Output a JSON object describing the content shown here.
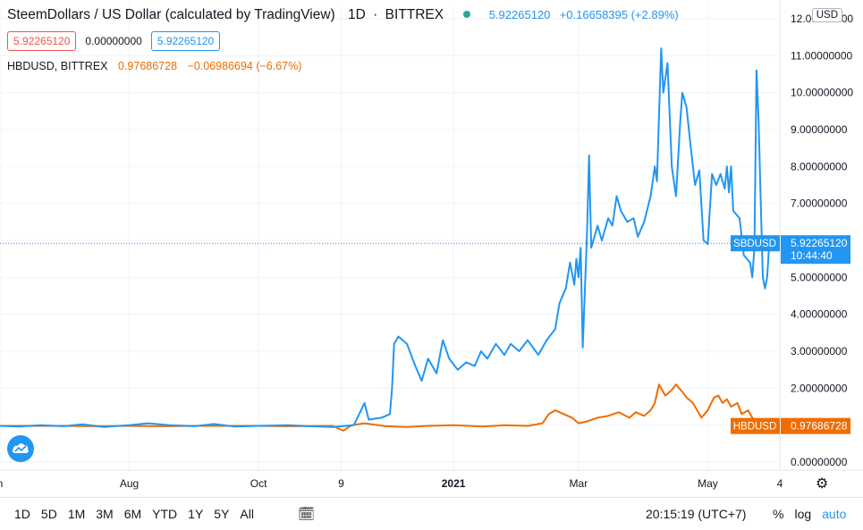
{
  "header": {
    "title": "SteemDollars / US Dollar (calculated by TradingView)",
    "interval": "1D",
    "exchange": "BITTREX",
    "quote_value": "5.92265120",
    "quote_change": "+0.16658395 (+2.89%)"
  },
  "ohlc": {
    "left": "5.92265120",
    "mid": "0.00000000",
    "right": "5.92265120"
  },
  "compare_legend": {
    "name": "HBDUSD, BITTREX",
    "value": "0.97686728",
    "change": "−0.06986694 (−6.67%)"
  },
  "currency": "USD",
  "colors": {
    "primary": "#2196f3",
    "compare": "#ef6c00",
    "up": "#26a69a",
    "down": "#ef5350"
  },
  "chart_data": {
    "type": "line",
    "x_tick_labels": [
      "n",
      "Aug",
      "Oct",
      "9",
      "2021",
      "Mar",
      "May",
      "4"
    ],
    "y_tick_labels": [
      "12.00000000",
      "11.00000000",
      "10.00000000",
      "9.00000000",
      "8.00000000",
      "7.00000000",
      "6.00000000",
      "5.00000000",
      "4.00000000",
      "3.00000000",
      "2.00000000",
      "1.00000000",
      "0.00000000"
    ],
    "ylim": [
      0,
      12
    ],
    "series": [
      {
        "name": "SBDUSD",
        "color": "#2196f3",
        "label": "SBDUSD",
        "last_value": "5.92265120",
        "countdown": "10:44:40",
        "points": [
          [
            "2020-06-01",
            0.98
          ],
          [
            "2020-06-10",
            0.96
          ],
          [
            "2020-06-20",
            1.0
          ],
          [
            "2020-07-01",
            0.97
          ],
          [
            "2020-07-10",
            1.02
          ],
          [
            "2020-07-20",
            0.95
          ],
          [
            "2020-08-01",
            1.0
          ],
          [
            "2020-08-10",
            1.05
          ],
          [
            "2020-08-20",
            1.0
          ],
          [
            "2020-09-01",
            0.97
          ],
          [
            "2020-09-10",
            1.03
          ],
          [
            "2020-09-20",
            0.96
          ],
          [
            "2020-10-01",
            0.98
          ],
          [
            "2020-10-15",
            1.0
          ],
          [
            "2020-10-25",
            0.97
          ],
          [
            "2020-11-05",
            0.95
          ],
          [
            "2020-11-15",
            1.0
          ],
          [
            "2020-11-20",
            1.6
          ],
          [
            "2020-11-22",
            1.15
          ],
          [
            "2020-11-28",
            1.2
          ],
          [
            "2020-12-02",
            1.3
          ],
          [
            "2020-12-03",
            2.0
          ],
          [
            "2020-12-04",
            3.2
          ],
          [
            "2020-12-06",
            3.4
          ],
          [
            "2020-12-10",
            3.2
          ],
          [
            "2020-12-14",
            2.6
          ],
          [
            "2020-12-17",
            2.2
          ],
          [
            "2020-12-20",
            2.8
          ],
          [
            "2020-12-24",
            2.4
          ],
          [
            "2020-12-27",
            3.3
          ],
          [
            "2020-12-30",
            2.8
          ],
          [
            "2021-01-03",
            2.5
          ],
          [
            "2021-01-07",
            2.7
          ],
          [
            "2021-01-11",
            2.6
          ],
          [
            "2021-01-14",
            3.0
          ],
          [
            "2021-01-17",
            2.8
          ],
          [
            "2021-01-21",
            3.2
          ],
          [
            "2021-01-25",
            2.9
          ],
          [
            "2021-01-28",
            3.2
          ],
          [
            "2021-02-01",
            3.0
          ],
          [
            "2021-02-05",
            3.3
          ],
          [
            "2021-02-10",
            2.9
          ],
          [
            "2021-02-14",
            3.3
          ],
          [
            "2021-02-18",
            3.6
          ],
          [
            "2021-02-20",
            4.3
          ],
          [
            "2021-02-23",
            4.7
          ],
          [
            "2021-02-25",
            5.4
          ],
          [
            "2021-02-27",
            4.8
          ],
          [
            "2021-02-28",
            5.5
          ],
          [
            "2021-03-01",
            5.0
          ],
          [
            "2021-03-02",
            5.8
          ],
          [
            "2021-03-03",
            3.1
          ],
          [
            "2021-03-05",
            6.2
          ],
          [
            "2021-03-06",
            8.3
          ],
          [
            "2021-03-07",
            5.8
          ],
          [
            "2021-03-10",
            6.4
          ],
          [
            "2021-03-12",
            6.0
          ],
          [
            "2021-03-15",
            6.6
          ],
          [
            "2021-03-17",
            6.4
          ],
          [
            "2021-03-19",
            7.2
          ],
          [
            "2021-03-21",
            6.8
          ],
          [
            "2021-03-24",
            6.5
          ],
          [
            "2021-03-27",
            6.6
          ],
          [
            "2021-03-29",
            6.1
          ],
          [
            "2021-04-01",
            6.5
          ],
          [
            "2021-04-04",
            7.2
          ],
          [
            "2021-04-06",
            8.0
          ],
          [
            "2021-04-07",
            7.6
          ],
          [
            "2021-04-09",
            11.2
          ],
          [
            "2021-04-10",
            10.0
          ],
          [
            "2021-04-12",
            10.8
          ],
          [
            "2021-04-14",
            8.0
          ],
          [
            "2021-04-16",
            7.2
          ],
          [
            "2021-04-18",
            9.2
          ],
          [
            "2021-04-19",
            10.0
          ],
          [
            "2021-04-21",
            9.6
          ],
          [
            "2021-04-23",
            8.5
          ],
          [
            "2021-04-25",
            7.5
          ],
          [
            "2021-04-27",
            7.9
          ],
          [
            "2021-04-29",
            6.0
          ],
          [
            "2021-05-01",
            5.9
          ],
          [
            "2021-05-03",
            7.8
          ],
          [
            "2021-05-05",
            7.5
          ],
          [
            "2021-05-07",
            7.8
          ],
          [
            "2021-05-09",
            7.4
          ],
          [
            "2021-05-10",
            8.0
          ],
          [
            "2021-05-11",
            7.3
          ],
          [
            "2021-05-12",
            8.0
          ],
          [
            "2021-05-13",
            6.8
          ],
          [
            "2021-05-16",
            6.6
          ],
          [
            "2021-05-18",
            5.6
          ],
          [
            "2021-05-21",
            5.4
          ],
          [
            "2021-05-22",
            5.0
          ],
          [
            "2021-05-23",
            5.8
          ],
          [
            "2021-05-24",
            10.6
          ],
          [
            "2021-05-25",
            9.2
          ],
          [
            "2021-05-26",
            7.0
          ],
          [
            "2021-05-27",
            5.0
          ],
          [
            "2021-05-28",
            4.7
          ],
          [
            "2021-05-29",
            5.0
          ],
          [
            "2021-05-30",
            5.92
          ]
        ]
      },
      {
        "name": "HBDUSD",
        "color": "#ef6c00",
        "label": "HBDUSD",
        "last_value": "0.97686728",
        "points": [
          [
            "2020-06-01",
            0.98
          ],
          [
            "2020-06-15",
            0.98
          ],
          [
            "2020-07-01",
            0.98
          ],
          [
            "2020-07-15",
            0.97
          ],
          [
            "2020-08-01",
            0.98
          ],
          [
            "2020-08-15",
            0.97
          ],
          [
            "2020-09-01",
            0.98
          ],
          [
            "2020-09-15",
            0.98
          ],
          [
            "2020-10-01",
            0.98
          ],
          [
            "2020-10-15",
            0.97
          ],
          [
            "2020-11-05",
            0.98
          ],
          [
            "2020-11-10",
            0.85
          ],
          [
            "2020-11-14",
            1.0
          ],
          [
            "2020-11-20",
            1.05
          ],
          [
            "2020-11-30",
            0.97
          ],
          [
            "2020-12-10",
            0.95
          ],
          [
            "2020-12-20",
            0.98
          ],
          [
            "2021-01-01",
            1.0
          ],
          [
            "2021-01-15",
            0.96
          ],
          [
            "2021-01-25",
            1.0
          ],
          [
            "2021-02-05",
            0.98
          ],
          [
            "2021-02-12",
            1.05
          ],
          [
            "2021-02-15",
            1.3
          ],
          [
            "2021-02-18",
            1.4
          ],
          [
            "2021-02-22",
            1.3
          ],
          [
            "2021-02-26",
            1.2
          ],
          [
            "2021-03-01",
            1.05
          ],
          [
            "2021-03-05",
            1.1
          ],
          [
            "2021-03-10",
            1.2
          ],
          [
            "2021-03-15",
            1.25
          ],
          [
            "2021-03-20",
            1.35
          ],
          [
            "2021-03-25",
            1.2
          ],
          [
            "2021-03-28",
            1.35
          ],
          [
            "2021-04-01",
            1.25
          ],
          [
            "2021-04-04",
            1.4
          ],
          [
            "2021-04-06",
            1.6
          ],
          [
            "2021-04-08",
            2.1
          ],
          [
            "2021-04-11",
            1.8
          ],
          [
            "2021-04-14",
            1.95
          ],
          [
            "2021-04-16",
            2.1
          ],
          [
            "2021-04-19",
            1.9
          ],
          [
            "2021-04-21",
            1.75
          ],
          [
            "2021-04-24",
            1.6
          ],
          [
            "2021-04-26",
            1.4
          ],
          [
            "2021-04-28",
            1.2
          ],
          [
            "2021-05-01",
            1.4
          ],
          [
            "2021-05-04",
            1.75
          ],
          [
            "2021-05-06",
            1.8
          ],
          [
            "2021-05-08",
            1.6
          ],
          [
            "2021-05-10",
            1.7
          ],
          [
            "2021-05-12",
            1.5
          ],
          [
            "2021-05-15",
            1.6
          ],
          [
            "2021-05-17",
            1.3
          ],
          [
            "2021-05-20",
            1.4
          ],
          [
            "2021-05-22",
            1.2
          ],
          [
            "2021-05-24",
            1.1
          ],
          [
            "2021-05-26",
            1.05
          ],
          [
            "2021-05-28",
            0.98
          ],
          [
            "2021-05-30",
            0.98
          ]
        ]
      }
    ],
    "xlim": [
      "2020-06-01",
      "2021-06-04"
    ],
    "x_tick_dates": [
      "2020-06-01",
      "2020-08-01",
      "2020-10-01",
      "2020-11-09",
      "2021-01-01",
      "2021-03-01",
      "2021-05-01",
      "2021-06-04"
    ],
    "grid": true
  },
  "bottom_bar": {
    "ranges": [
      "1D",
      "5D",
      "1M",
      "3M",
      "6M",
      "YTD",
      "1Y",
      "5Y",
      "All"
    ],
    "clock": "20:15:19 (UTC+7)",
    "percent": "%",
    "log": "log",
    "auto": "auto"
  }
}
